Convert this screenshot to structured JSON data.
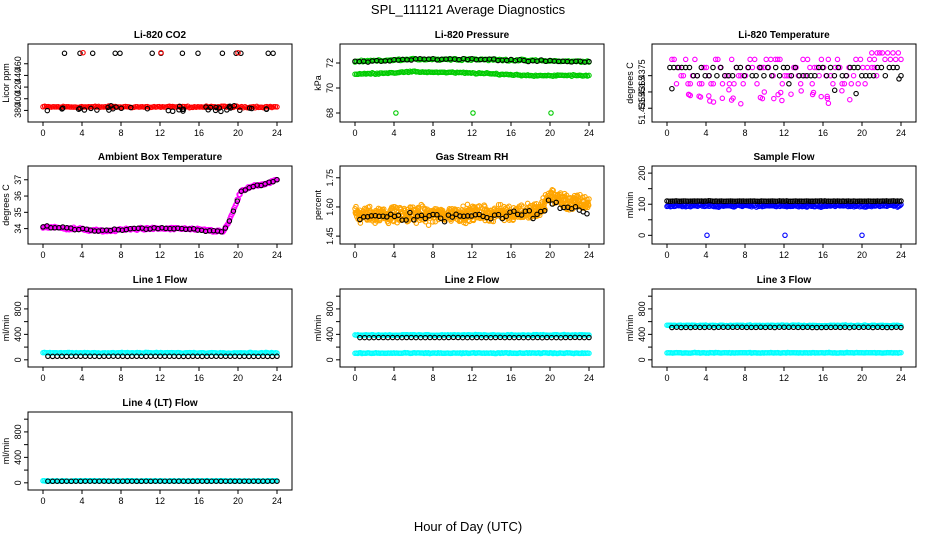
{
  "figure": {
    "title": "SPL_111121  Average Diagnostics",
    "xlabel": "Hour of Day (UTC)"
  },
  "colors": {
    "black": "#000000",
    "red": "#ff0000",
    "green": "#00cc00",
    "magenta": "#ff00ff",
    "orange": "#ffa500",
    "blue": "#0000ff",
    "cyan": "#00ffff"
  },
  "chart_data": [
    {
      "type": "scatter",
      "title": "Li-820 CO2",
      "ylabel": "Licor ppm",
      "xlim": [
        0,
        24
      ],
      "xticks": [
        0,
        4,
        8,
        12,
        16,
        20,
        24
      ],
      "ylim": [
        367,
        487
      ],
      "yticks": [
        380,
        400,
        420,
        440,
        460
      ],
      "series": [
        {
          "color": "red",
          "pattern": "band",
          "x0": 0,
          "x1": 24,
          "y": 386,
          "spread": 2,
          "n": 140
        },
        {
          "color": "black",
          "pattern": "scatter",
          "x0": 0.3,
          "x1": 23.8,
          "y": 383,
          "spread": 8,
          "n": 40
        },
        {
          "color": "black",
          "pattern": "points",
          "x": [
            2.2,
            3.8,
            5.1,
            7.4,
            7.9,
            11.2,
            12.1,
            14.3,
            15.9,
            18.4,
            19.8,
            20.3,
            23.1,
            23.6
          ],
          "y": [
            478,
            478,
            478,
            478,
            478,
            478,
            478,
            478,
            478,
            478,
            478,
            478,
            478,
            478
          ]
        },
        {
          "color": "red",
          "pattern": "points",
          "x": [
            4.1,
            12.1,
            20.0
          ],
          "y": [
            479,
            479,
            479
          ]
        }
      ]
    },
    {
      "type": "scatter",
      "title": "Li-820 Pressure",
      "ylabel": "kPa",
      "xlim": [
        0,
        24
      ],
      "xticks": [
        0,
        4,
        8,
        12,
        16,
        20,
        24
      ],
      "ylim": [
        67.6,
        73.2
      ],
      "yticks": [
        68,
        70,
        72
      ],
      "series": [
        {
          "color": "green",
          "pattern": "curve",
          "x0": 0,
          "x1": 24,
          "pts": [
            [
              0,
              72.1
            ],
            [
              6,
              72.3
            ],
            [
              12,
              72.3
            ],
            [
              18,
              72.2
            ],
            [
              24,
              72.1
            ]
          ],
          "spread": 0.1,
          "n": 150
        },
        {
          "color": "black",
          "pattern": "curve",
          "x0": 0,
          "x1": 24,
          "pts": [
            [
              0,
              72.1
            ],
            [
              6,
              72.3
            ],
            [
              12,
              72.3
            ],
            [
              18,
              72.2
            ],
            [
              24,
              72.1
            ]
          ],
          "spread": 0.1,
          "n": 55
        },
        {
          "color": "green",
          "pattern": "curve",
          "x0": 0,
          "x1": 24,
          "pts": [
            [
              0,
              71.1
            ],
            [
              6,
              71.3
            ],
            [
              12,
              71.2
            ],
            [
              18,
              71.0
            ],
            [
              24,
              71.0
            ]
          ],
          "spread": 0.08,
          "n": 150
        },
        {
          "color": "green",
          "pattern": "points",
          "x": [
            4.2,
            12.1,
            20.1
          ],
          "y": [
            68.0,
            68.0,
            68.0
          ]
        }
      ]
    },
    {
      "type": "scatter",
      "title": "Li-820 Temperature",
      "ylabel": "degrees C",
      "xlim": [
        0,
        24
      ],
      "xticks": [
        0,
        4,
        8,
        12,
        16,
        20,
        24
      ],
      "ylim": [
        51.4349,
        51.4392
      ],
      "yticks": [
        51.4355,
        51.4365,
        51.4375
      ],
      "ytick_labels": [
        "51.4355",
        "51.4365",
        "51.4375"
      ],
      "series": [
        {
          "color": "magenta",
          "pattern": "levels",
          "x0": 0.5,
          "x1": 21.5,
          "levels": [
            51.437,
            51.4375,
            51.438,
            51.4385
          ],
          "n": 90
        },
        {
          "color": "magenta",
          "pattern": "scatter",
          "x0": 1.5,
          "x1": 19,
          "y": 51.4362,
          "spread": 0.0007,
          "n": 30
        },
        {
          "color": "magenta",
          "pattern": "levels",
          "x0": 21,
          "x1": 24,
          "levels": [
            51.4385,
            51.4389
          ],
          "n": 12
        },
        {
          "color": "black",
          "pattern": "levels",
          "x0": 0.3,
          "x1": 24,
          "levels": [
            51.4375,
            51.438
          ],
          "n": 60
        },
        {
          "color": "black",
          "pattern": "points",
          "x": [
            0.5,
            12.5,
            17.2,
            19.4,
            23.8
          ],
          "y": [
            51.4367,
            51.437,
            51.4366,
            51.4364,
            51.4373
          ]
        }
      ]
    },
    {
      "type": "scatter",
      "title": "Ambient Box Temperature",
      "ylabel": "degrees C",
      "xlim": [
        0,
        24
      ],
      "xticks": [
        0,
        4,
        8,
        12,
        16,
        20,
        24
      ],
      "ylim": [
        33.3,
        37.6
      ],
      "yticks": [
        34,
        35,
        36,
        37
      ],
      "series": [
        {
          "color": "magenta",
          "pattern": "curve",
          "x0": 0,
          "x1": 24,
          "pts": [
            [
              0,
              34.1
            ],
            [
              3,
              34.0
            ],
            [
              6,
              33.85
            ],
            [
              10,
              34.0
            ],
            [
              14,
              34.0
            ],
            [
              17,
              33.9
            ],
            [
              18.5,
              33.8
            ],
            [
              19.2,
              34.6
            ],
            [
              19.8,
              35.5
            ],
            [
              20.3,
              36.3
            ],
            [
              21.5,
              36.6
            ],
            [
              22.5,
              36.7
            ],
            [
              24,
              37.0
            ]
          ],
          "spread": 0.12,
          "n": 260
        },
        {
          "color": "black",
          "pattern": "curve",
          "x0": 0,
          "x1": 24,
          "pts": [
            [
              0,
              34.1
            ],
            [
              3,
              34.0
            ],
            [
              6,
              33.85
            ],
            [
              10,
              34.0
            ],
            [
              14,
              34.0
            ],
            [
              17,
              33.9
            ],
            [
              18.5,
              33.8
            ],
            [
              19.2,
              34.6
            ],
            [
              19.8,
              35.5
            ],
            [
              20.3,
              36.3
            ],
            [
              21.5,
              36.6
            ],
            [
              22.5,
              36.7
            ],
            [
              24,
              37.0
            ]
          ],
          "spread": 0.1,
          "n": 60
        }
      ]
    },
    {
      "type": "scatter",
      "title": "Gas Stream RH",
      "ylabel": "percent",
      "xlim": [
        0,
        24
      ],
      "xticks": [
        0,
        4,
        8,
        12,
        16,
        20,
        24
      ],
      "ylim": [
        1.43,
        1.79
      ],
      "yticks": [
        1.45,
        1.6,
        1.75
      ],
      "ytick_labels": [
        "1.45",
        "1.60",
        "1.75"
      ],
      "series": [
        {
          "color": "orange",
          "pattern": "curve",
          "x0": 0,
          "x1": 24,
          "pts": [
            [
              0,
              1.56
            ],
            [
              8,
              1.56
            ],
            [
              16,
              1.57
            ],
            [
              19,
              1.58
            ],
            [
              20,
              1.66
            ],
            [
              22,
              1.62
            ],
            [
              24,
              1.62
            ]
          ],
          "spread": 0.06,
          "n": 700
        },
        {
          "color": "black",
          "pattern": "curve",
          "x0": 0.5,
          "x1": 23.8,
          "pts": [
            [
              0,
              1.55
            ],
            [
              8,
              1.55
            ],
            [
              16,
              1.56
            ],
            [
              19,
              1.57
            ],
            [
              20,
              1.63
            ],
            [
              22,
              1.58
            ],
            [
              24,
              1.58
            ]
          ],
          "spread": 0.035,
          "n": 60
        }
      ]
    },
    {
      "type": "scatter",
      "title": "Sample Flow",
      "ylabel": "ml/min",
      "xlim": [
        0,
        24
      ],
      "xticks": [
        0,
        4,
        8,
        12,
        16,
        20,
        24
      ],
      "ylim": [
        -15,
        210
      ],
      "yticks": [
        0,
        50,
        100,
        150,
        200
      ],
      "ytick_labels": [
        "0",
        "",
        "100",
        "",
        "200"
      ],
      "series": [
        {
          "color": "blue",
          "pattern": "band",
          "x0": 0,
          "x1": 24,
          "y": 95,
          "spread": 6,
          "n": 200
        },
        {
          "color": "black",
          "pattern": "band",
          "x0": 0,
          "x1": 24,
          "y": 110,
          "spread": 1,
          "n": 130
        },
        {
          "color": "blue",
          "pattern": "points",
          "x": [
            4.1,
            12.1,
            20.0
          ],
          "y": [
            0,
            0,
            0
          ]
        }
      ]
    },
    {
      "type": "scatter",
      "title": "Line 1 Flow",
      "ylabel": "ml/min",
      "xlim": [
        0,
        24
      ],
      "xticks": [
        0,
        4,
        8,
        12,
        16,
        20,
        24
      ],
      "ylim": [
        -50,
        1050
      ],
      "yticks": [
        0,
        200,
        400,
        600,
        800,
        1000
      ],
      "ytick_labels": [
        "0",
        "",
        "400",
        "",
        "800",
        ""
      ],
      "series": [
        {
          "color": "cyan",
          "pattern": "band",
          "x0": 0,
          "x1": 24,
          "y": 110,
          "spread": 10,
          "n": 170
        },
        {
          "color": "black",
          "pattern": "band",
          "x0": 0.5,
          "x1": 24,
          "y": 55,
          "spread": 2,
          "n": 50
        }
      ]
    },
    {
      "type": "scatter",
      "title": "Line 2 Flow",
      "ylabel": "ml/min",
      "xlim": [
        0,
        24
      ],
      "xticks": [
        0,
        4,
        8,
        12,
        16,
        20,
        24
      ],
      "ylim": [
        -50,
        1050
      ],
      "yticks": [
        0,
        200,
        400,
        600,
        800,
        1000
      ],
      "ytick_labels": [
        "0",
        "",
        "400",
        "",
        "800",
        ""
      ],
      "series": [
        {
          "color": "cyan",
          "pattern": "band",
          "x0": 0,
          "x1": 24,
          "y": 390,
          "spread": 10,
          "n": 170
        },
        {
          "color": "cyan",
          "pattern": "band",
          "x0": 0,
          "x1": 24,
          "y": 105,
          "spread": 10,
          "n": 170
        },
        {
          "color": "black",
          "pattern": "band",
          "x0": 0.5,
          "x1": 24,
          "y": 350,
          "spread": 3,
          "n": 50
        }
      ]
    },
    {
      "type": "scatter",
      "title": "Line 3 Flow",
      "ylabel": "ml/min",
      "xlim": [
        0,
        24
      ],
      "xticks": [
        0,
        4,
        8,
        12,
        16,
        20,
        24
      ],
      "ylim": [
        -50,
        1050
      ],
      "yticks": [
        0,
        200,
        400,
        600,
        800,
        1000
      ],
      "ytick_labels": [
        "0",
        "",
        "400",
        "",
        "800",
        ""
      ],
      "series": [
        {
          "color": "cyan",
          "pattern": "band",
          "x0": 0,
          "x1": 24,
          "y": 540,
          "spread": 10,
          "n": 170
        },
        {
          "color": "cyan",
          "pattern": "band",
          "x0": 0,
          "x1": 24,
          "y": 110,
          "spread": 8,
          "n": 170
        },
        {
          "color": "black",
          "pattern": "band",
          "x0": 0.5,
          "x1": 24,
          "y": 510,
          "spread": 4,
          "n": 50
        }
      ]
    },
    {
      "type": "scatter",
      "title": "Line 4 (LT) Flow",
      "ylabel": "ml/min",
      "xlim": [
        0,
        24
      ],
      "xticks": [
        0,
        4,
        8,
        12,
        16,
        20,
        24
      ],
      "ylim": [
        -50,
        1050
      ],
      "yticks": [
        0,
        200,
        400,
        600,
        800,
        1000
      ],
      "ytick_labels": [
        "0",
        "",
        "400",
        "",
        "800",
        ""
      ],
      "series": [
        {
          "color": "cyan",
          "pattern": "band",
          "x0": 0,
          "x1": 24,
          "y": 30,
          "spread": 6,
          "n": 170
        },
        {
          "color": "black",
          "pattern": "band",
          "x0": 0.5,
          "x1": 24,
          "y": 25,
          "spread": 2,
          "n": 50
        }
      ]
    }
  ]
}
